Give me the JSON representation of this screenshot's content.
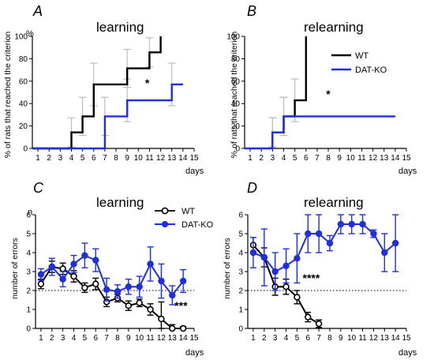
{
  "panel_titles": {
    "A": "learning",
    "B": "relearning",
    "C": "learning",
    "D": "relearning"
  },
  "panel_letters": {
    "A": "A",
    "B": "B",
    "C": "C",
    "D": "D"
  },
  "y_units": {
    "A": "%",
    "C": "n"
  },
  "colors": {
    "WT": "#000000",
    "DAT_KO": "#1f2fe0",
    "error_bar": "#bdbdbd"
  },
  "chart_data": [
    {
      "panel": "A",
      "type": "line",
      "step": true,
      "title": "learning",
      "xlabel": "days",
      "ylabel": "% of rats that reached the criterion",
      "xlim": [
        0.5,
        15
      ],
      "ylim": [
        0,
        100
      ],
      "xticks": [
        1,
        2,
        3,
        4,
        5,
        6,
        7,
        8,
        9,
        10,
        11,
        12,
        13,
        14,
        15
      ],
      "yticks": [
        0,
        20,
        40,
        60,
        80,
        100
      ],
      "series": [
        {
          "name": "WT",
          "steps": [
            [
              0.5,
              0
            ],
            [
              4,
              0
            ],
            [
              4,
              14.3
            ],
            [
              5,
              14.3
            ],
            [
              5,
              28.6
            ],
            [
              6,
              28.6
            ],
            [
              6,
              57.1
            ],
            [
              9,
              57.1
            ],
            [
              9,
              71.4
            ],
            [
              11,
              71.4
            ],
            [
              11,
              85.7
            ],
            [
              12,
              85.7
            ],
            [
              12,
              100
            ]
          ],
          "errors": [
            [
              4,
              14.3,
              13
            ],
            [
              5,
              28.6,
              17
            ],
            [
              6,
              57.1,
              19
            ],
            [
              9,
              71.4,
              17
            ],
            [
              11,
              85.7,
              13
            ]
          ]
        },
        {
          "name": "DAT-KO",
          "steps": [
            [
              0.5,
              0
            ],
            [
              7,
              0
            ],
            [
              7,
              28.6
            ],
            [
              9,
              28.6
            ],
            [
              9,
              42.9
            ],
            [
              13,
              42.9
            ],
            [
              13,
              57.1
            ],
            [
              14,
              57.1
            ]
          ],
          "errors": [
            [
              7,
              28.6,
              17
            ],
            [
              9,
              42.9,
              19
            ],
            [
              13,
              57.1,
              19
            ]
          ]
        }
      ],
      "annotations": [
        {
          "text": "*",
          "x": 10.8,
          "y": 55
        }
      ]
    },
    {
      "panel": "B",
      "type": "line",
      "step": true,
      "title": "relearning",
      "xlabel": "days",
      "ylabel": "% of rats that reached the criterion",
      "xlim": [
        0.5,
        15
      ],
      "ylim": [
        0,
        100
      ],
      "xticks": [
        1,
        2,
        3,
        4,
        5,
        6,
        7,
        8,
        9,
        10,
        11,
        12,
        13,
        14,
        15
      ],
      "yticks": [
        0,
        20,
        40,
        60,
        80,
        100
      ],
      "series": [
        {
          "name": "WT",
          "steps": [
            [
              3,
              0
            ],
            [
              3,
              14.3
            ],
            [
              4,
              14.3
            ],
            [
              4,
              28.6
            ],
            [
              5,
              28.6
            ],
            [
              5,
              42.9
            ],
            [
              6,
              42.9
            ],
            [
              6,
              100
            ]
          ],
          "errors": [
            [
              3,
              14.3,
              13
            ],
            [
              4,
              28.6,
              17
            ],
            [
              5,
              42.9,
              19
            ]
          ]
        },
        {
          "name": "DAT-KO",
          "steps": [
            [
              0.5,
              0
            ],
            [
              3,
              0
            ],
            [
              3,
              14.3
            ],
            [
              4,
              14.3
            ],
            [
              4,
              28.6
            ],
            [
              14,
              28.6
            ]
          ],
          "errors": [
            [
              3,
              14.3,
              13
            ],
            [
              4,
              28.6,
              17
            ]
          ]
        }
      ],
      "annotations": [
        {
          "text": "*",
          "x": 8,
          "y": 45
        }
      ]
    },
    {
      "panel": "C",
      "type": "line",
      "title": "learning",
      "xlabel": "days",
      "ylabel": "number of errors",
      "xlim": [
        0.5,
        15
      ],
      "ylim": [
        0,
        6
      ],
      "xticks": [
        1,
        2,
        3,
        4,
        5,
        6,
        7,
        8,
        9,
        10,
        11,
        12,
        13,
        14,
        15
      ],
      "yticks": [
        0,
        1,
        2,
        3,
        4,
        5,
        6
      ],
      "reference_line": 2,
      "series": [
        {
          "name": "WT",
          "x": [
            1,
            2,
            3,
            4,
            5,
            6,
            7,
            8,
            9,
            10,
            11,
            12,
            13,
            14
          ],
          "y": [
            2.35,
            3.25,
            3.15,
            2.75,
            2.15,
            2.35,
            1.4,
            1.6,
            1.2,
            1.35,
            1.0,
            0.5,
            0.0,
            0.0
          ],
          "err": [
            0.25,
            0.3,
            0.3,
            0.3,
            0.25,
            0.3,
            0.25,
            0.2,
            0.25,
            0.2,
            0.3,
            0.9,
            0.2,
            0.1
          ]
        },
        {
          "name": "DAT-KO",
          "x": [
            1,
            2,
            3,
            4,
            5,
            6,
            7,
            8,
            9,
            10,
            11,
            12,
            13,
            14
          ],
          "y": [
            2.85,
            3.25,
            2.6,
            3.4,
            3.85,
            3.6,
            2.05,
            1.95,
            2.2,
            2.2,
            3.4,
            2.5,
            1.75,
            2.5
          ],
          "err": [
            0.3,
            0.45,
            0.4,
            0.45,
            0.65,
            0.6,
            0.6,
            0.35,
            0.4,
            0.55,
            0.9,
            0.9,
            0.5,
            0.6
          ]
        }
      ],
      "annotations": [
        {
          "text": "***",
          "x": 13.8,
          "y": 1.0
        }
      ]
    },
    {
      "panel": "D",
      "type": "line",
      "title": "relearning",
      "xlabel": "days",
      "ylabel": "number of errors",
      "xlim": [
        0.5,
        15
      ],
      "ylim": [
        0,
        6
      ],
      "xticks": [
        1,
        2,
        3,
        4,
        5,
        6,
        7,
        8,
        9,
        10,
        11,
        12,
        13,
        14,
        15
      ],
      "yticks": [
        0,
        1,
        2,
        3,
        4,
        5,
        6
      ],
      "reference_line": 2,
      "series": [
        {
          "name": "WT",
          "x": [
            1,
            2,
            3,
            4,
            5,
            6,
            7
          ],
          "y": [
            4.4,
            3.75,
            2.2,
            2.2,
            1.65,
            0.6,
            0.25
          ],
          "err": [
            0.4,
            0.5,
            0.45,
            0.4,
            0.35,
            0.25,
            0.2
          ]
        },
        {
          "name": "DAT-KO",
          "x": [
            1,
            2,
            3,
            4,
            5,
            6,
            7,
            8,
            9,
            10,
            11,
            12,
            13,
            14
          ],
          "y": [
            4.0,
            3.75,
            3.0,
            3.3,
            3.7,
            5.0,
            5.0,
            4.5,
            5.5,
            5.5,
            5.5,
            5.0,
            4.0,
            4.5
          ],
          "err": [
            0.8,
            1.5,
            1.0,
            0.9,
            1.3,
            1.0,
            1.0,
            0.4,
            0.5,
            0.5,
            0.5,
            0.2,
            1.0,
            1.5
          ]
        }
      ],
      "annotations": [
        {
          "text": "****",
          "x": 6.3,
          "y": 2.45
        }
      ]
    }
  ],
  "legend_top": [
    {
      "name": "WT"
    },
    {
      "name": "DAT-KO"
    }
  ],
  "legend_bottom": [
    {
      "name": "WT"
    },
    {
      "name": "DAT-KO"
    }
  ]
}
